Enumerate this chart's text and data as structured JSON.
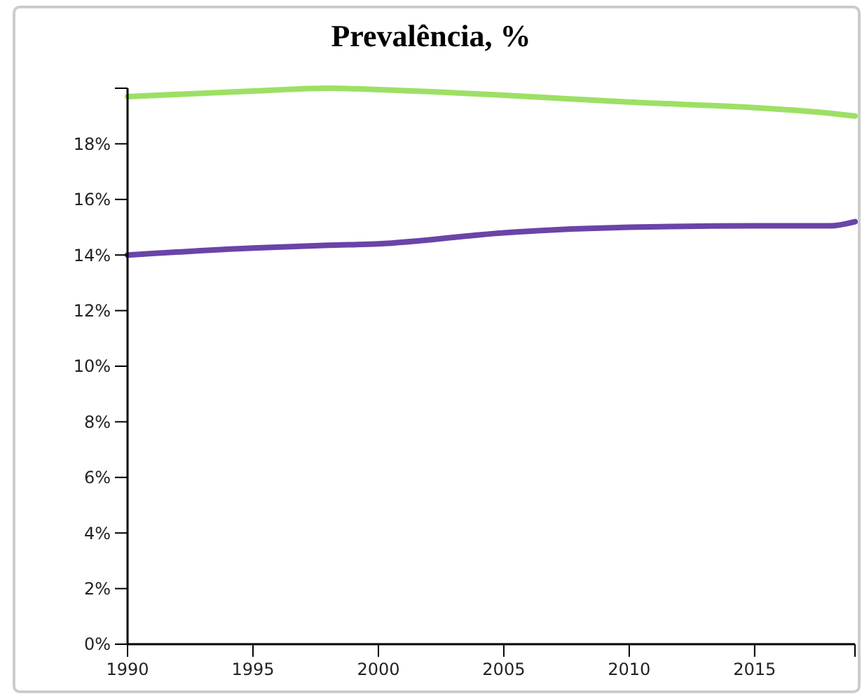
{
  "chart_data": {
    "type": "line",
    "title": "Prevalência, %",
    "x": [
      1990,
      1995,
      1998,
      2000,
      2005,
      2010,
      2015,
      2018,
      2019
    ],
    "series": [
      {
        "color": "#9de065",
        "values": [
          19.7,
          19.9,
          20.0,
          19.95,
          19.75,
          19.5,
          19.3,
          19.1,
          19.0
        ]
      },
      {
        "color": "#6a44a8",
        "values": [
          14.0,
          14.25,
          14.35,
          14.4,
          14.8,
          15.0,
          15.05,
          15.05,
          15.2
        ]
      }
    ],
    "xlim": [
      1990,
      2019
    ],
    "xticks": [
      1990,
      1995,
      2000,
      2005,
      2010,
      2015,
      {
        "value": 2019,
        "label": null
      }
    ],
    "ylim": [
      0,
      20
    ],
    "yticks": [
      {
        "value": 0,
        "label": "0%"
      },
      {
        "value": 2,
        "label": "2%"
      },
      {
        "value": 4,
        "label": "4%"
      },
      {
        "value": 6,
        "label": "6%"
      },
      {
        "value": 8,
        "label": "8%"
      },
      {
        "value": 10,
        "label": "10%"
      },
      {
        "value": 12,
        "label": "12%"
      },
      {
        "value": 14,
        "label": "14%"
      },
      {
        "value": 16,
        "label": "16%"
      },
      {
        "value": 18,
        "label": "18%"
      },
      {
        "value": 20,
        "label": null
      }
    ],
    "grid": false,
    "marker": "none",
    "line_style": "solid"
  }
}
